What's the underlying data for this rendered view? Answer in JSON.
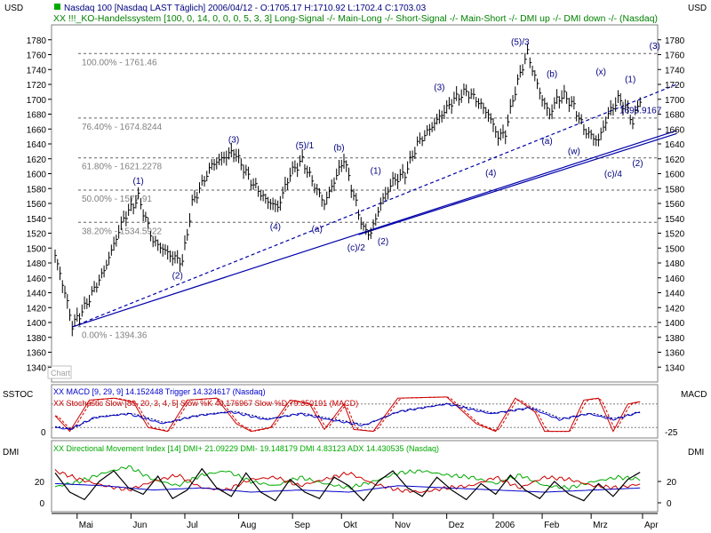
{
  "header": {
    "left_axis_label": "USD",
    "right_axis_label": "USD",
    "line1": "Nasdaq 100 [Nasdaq LAST Täglich] 2006/04/12 - O:1705.17 H:1710.92 L:1702.4 C:1703.03",
    "line2": "XX !!!_KO-Handelssystem [100, 0, 14, 0, 0, 0, 5, 3, 3] Long-Signal -/- Main-Long -/- Short-Signal -/- Main-Short -/- DMI up -/- DMI down -/- (Nasdaq)"
  },
  "colors": {
    "price": "#000000",
    "trendline": "#0000aa",
    "wave_label": "#000080",
    "fib_text": "#808080",
    "macd": "#0000cc",
    "stoch": "#cc0000",
    "dmi_plus": "#00aa00",
    "dmi_minus": "#cc0000",
    "dmi": "#000000",
    "adx": "#0000cc",
    "header_title": "#000080",
    "header_system": "#008000"
  },
  "chart_data": [
    {
      "type": "line",
      "name": "price",
      "ylim": [
        1320,
        1800
      ],
      "y_ticks": [
        1340,
        1360,
        1380,
        1400,
        1420,
        1440,
        1460,
        1480,
        1500,
        1520,
        1540,
        1560,
        1580,
        1600,
        1620,
        1640,
        1660,
        1680,
        1700,
        1720,
        1740,
        1760,
        1780
      ],
      "months": [
        "Mai",
        "Jun",
        "Jul",
        "Aug",
        "Sep",
        "Okt",
        "Nov",
        "Dez",
        "2006",
        "Feb",
        "Mrz",
        "Apr"
      ],
      "month_index": [
        9,
        31,
        53,
        75,
        97,
        117,
        138,
        160,
        179,
        199,
        219,
        240
      ],
      "n_bars": 244,
      "anchors": [
        [
          0,
          1490
        ],
        [
          4,
          1440
        ],
        [
          7,
          1396
        ],
        [
          12,
          1420
        ],
        [
          20,
          1470
        ],
        [
          28,
          1540
        ],
        [
          34,
          1568
        ],
        [
          40,
          1510
        ],
        [
          48,
          1488
        ],
        [
          52,
          1482
        ],
        [
          56,
          1560
        ],
        [
          64,
          1612
        ],
        [
          73,
          1630
        ],
        [
          80,
          1590
        ],
        [
          86,
          1565
        ],
        [
          91,
          1555
        ],
        [
          96,
          1600
        ],
        [
          101,
          1618
        ],
        [
          105,
          1590
        ],
        [
          110,
          1560
        ],
        [
          114,
          1590
        ],
        [
          118,
          1620
        ],
        [
          122,
          1570
        ],
        [
          126,
          1525
        ],
        [
          129,
          1520
        ],
        [
          133,
          1560
        ],
        [
          138,
          1590
        ],
        [
          143,
          1600
        ],
        [
          148,
          1640
        ],
        [
          153,
          1660
        ],
        [
          158,
          1680
        ],
        [
          163,
          1700
        ],
        [
          168,
          1710
        ],
        [
          172,
          1700
        ],
        [
          177,
          1680
        ],
        [
          181,
          1650
        ],
        [
          184,
          1655
        ],
        [
          187,
          1700
        ],
        [
          191,
          1745
        ],
        [
          193,
          1762
        ],
        [
          196,
          1730
        ],
        [
          199,
          1700
        ],
        [
          202,
          1680
        ],
        [
          205,
          1700
        ],
        [
          208,
          1705
        ],
        [
          212,
          1690
        ],
        [
          216,
          1660
        ],
        [
          220,
          1648
        ],
        [
          222,
          1645
        ],
        [
          226,
          1680
        ],
        [
          230,
          1700
        ],
        [
          233,
          1690
        ],
        [
          236,
          1670
        ],
        [
          239,
          1700
        ],
        [
          242,
          1720
        ],
        [
          244,
          1745
        ],
        [
          246,
          1752
        ],
        [
          249,
          1720
        ],
        [
          252,
          1703
        ]
      ],
      "fib_levels": [
        {
          "value": 1761.46,
          "label": "100.00% - 1761.46"
        },
        {
          "value": 1674.8244,
          "label": "76.40% - 1674.8244"
        },
        {
          "value": 1621.2278,
          "label": "61.80% - 1621.2278"
        },
        {
          "value": 1577.91,
          "label": "50.00% - 1577.91"
        },
        {
          "value": 1534.5922,
          "label": "38.20% - 1534.5922"
        },
        {
          "value": 1394.36,
          "label": "0.00% - 1394.36"
        }
      ],
      "trendlines": [
        {
          "from": [
            7,
            1394
          ],
          "to": [
            254,
            1658
          ],
          "dash": false
        },
        {
          "from": [
            124,
            1518
          ],
          "to": [
            254,
            1654
          ],
          "dash": false
        },
        {
          "from": [
            7,
            1394
          ],
          "to": [
            254,
            1720
          ],
          "dash": true
        }
      ],
      "wave_labels": [
        {
          "text": "(1)",
          "i": 34,
          "v": 1586
        },
        {
          "text": "(2)",
          "i": 50,
          "v": 1459
        },
        {
          "text": "(3)",
          "i": 73,
          "v": 1642
        },
        {
          "text": "(4)",
          "i": 90,
          "v": 1525
        },
        {
          "text": "(5)/1",
          "i": 102,
          "v": 1634
        },
        {
          "text": "(a)",
          "i": 107,
          "v": 1522
        },
        {
          "text": "(b)",
          "i": 116,
          "v": 1631
        },
        {
          "text": "(c)/2",
          "i": 123,
          "v": 1497
        },
        {
          "text": "(1)",
          "i": 131,
          "v": 1600
        },
        {
          "text": "(2)",
          "i": 134,
          "v": 1505
        },
        {
          "text": "(3)",
          "i": 157,
          "v": 1712
        },
        {
          "text": "(4)",
          "i": 178,
          "v": 1597
        },
        {
          "text": "(5)/3",
          "i": 190,
          "v": 1773
        },
        {
          "text": "(a)",
          "i": 201,
          "v": 1640
        },
        {
          "text": "(b)",
          "i": 203,
          "v": 1730
        },
        {
          "text": "(w)",
          "i": 212,
          "v": 1626
        },
        {
          "text": "(x)",
          "i": 223,
          "v": 1733
        },
        {
          "text": "(c)/4",
          "i": 228,
          "v": 1596
        },
        {
          "text": "(1)",
          "i": 235,
          "v": 1723
        },
        {
          "text": "(2)",
          "i": 238,
          "v": 1610
        },
        {
          "text": "(3)",
          "i": 245,
          "v": 1768
        }
      ],
      "last_value_label": "1695.9167",
      "watermark": "Chart"
    },
    {
      "type": "line",
      "name": "sstoc_macd",
      "left_label": "SSTOC",
      "right_label": "MACD",
      "legend_macd": "XX MACD [9, 29, 9] 14.152448 Trigger 14.324617 (Nasdaq)",
      "legend_stoch": "XX Stochastic Slow [80, 20, 3, 4, 5] Slow %K 40.176967 Slow %D 79.350191 (MACD)",
      "left_ticks": [
        0
      ],
      "right_ticks": [
        -25
      ],
      "stoch_anchors": [
        [
          0,
          50
        ],
        [
          6,
          10
        ],
        [
          14,
          90
        ],
        [
          24,
          95
        ],
        [
          32,
          85
        ],
        [
          38,
          20
        ],
        [
          46,
          10
        ],
        [
          54,
          90
        ],
        [
          66,
          95
        ],
        [
          74,
          30
        ],
        [
          80,
          10
        ],
        [
          88,
          20
        ],
        [
          96,
          90
        ],
        [
          104,
          80
        ],
        [
          110,
          15
        ],
        [
          118,
          80
        ],
        [
          122,
          15
        ],
        [
          130,
          10
        ],
        [
          140,
          95
        ],
        [
          160,
          98
        ],
        [
          172,
          30
        ],
        [
          180,
          10
        ],
        [
          188,
          95
        ],
        [
          196,
          60
        ],
        [
          200,
          10
        ],
        [
          210,
          10
        ],
        [
          216,
          90
        ],
        [
          222,
          95
        ],
        [
          228,
          10
        ],
        [
          234,
          80
        ],
        [
          242,
          90
        ],
        [
          250,
          40
        ]
      ],
      "macd_anchors": [
        [
          0,
          20
        ],
        [
          6,
          15
        ],
        [
          16,
          45
        ],
        [
          30,
          55
        ],
        [
          44,
          30
        ],
        [
          58,
          50
        ],
        [
          72,
          60
        ],
        [
          86,
          40
        ],
        [
          100,
          55
        ],
        [
          112,
          40
        ],
        [
          126,
          25
        ],
        [
          140,
          60
        ],
        [
          160,
          80
        ],
        [
          178,
          55
        ],
        [
          194,
          70
        ],
        [
          206,
          40
        ],
        [
          218,
          55
        ],
        [
          228,
          40
        ],
        [
          242,
          65
        ],
        [
          252,
          50
        ]
      ]
    },
    {
      "type": "line",
      "name": "dmi",
      "left_label": "DMI",
      "right_label": "DMI",
      "legend": "XX Directional Movement Index [14] DMI+ 21.09229 DMI- 19.148179 DMI 4.83123 ADX 14.430535 (Nasdaq)",
      "ylim": [
        -5,
        45
      ],
      "left_ticks": [
        0,
        20
      ],
      "right_ticks": [
        0,
        20
      ],
      "dmi_plus_anchors": [
        [
          0,
          15
        ],
        [
          10,
          20
        ],
        [
          20,
          28
        ],
        [
          30,
          34
        ],
        [
          40,
          22
        ],
        [
          50,
          16
        ],
        [
          60,
          26
        ],
        [
          70,
          30
        ],
        [
          80,
          20
        ],
        [
          90,
          16
        ],
        [
          100,
          24
        ],
        [
          110,
          18
        ],
        [
          120,
          14
        ],
        [
          130,
          20
        ],
        [
          140,
          28
        ],
        [
          150,
          30
        ],
        [
          160,
          26
        ],
        [
          170,
          24
        ],
        [
          180,
          18
        ],
        [
          190,
          26
        ],
        [
          200,
          16
        ],
        [
          210,
          14
        ],
        [
          220,
          20
        ],
        [
          230,
          24
        ],
        [
          240,
          22
        ],
        [
          252,
          21
        ]
      ],
      "dmi_minus_anchors": [
        [
          0,
          30
        ],
        [
          10,
          22
        ],
        [
          20,
          16
        ],
        [
          30,
          12
        ],
        [
          40,
          20
        ],
        [
          50,
          26
        ],
        [
          60,
          14
        ],
        [
          70,
          12
        ],
        [
          80,
          22
        ],
        [
          90,
          24
        ],
        [
          100,
          16
        ],
        [
          110,
          22
        ],
        [
          120,
          28
        ],
        [
          130,
          18
        ],
        [
          140,
          12
        ],
        [
          150,
          10
        ],
        [
          160,
          14
        ],
        [
          170,
          16
        ],
        [
          180,
          24
        ],
        [
          190,
          14
        ],
        [
          200,
          24
        ],
        [
          210,
          22
        ],
        [
          220,
          16
        ],
        [
          230,
          14
        ],
        [
          240,
          18
        ],
        [
          252,
          19
        ]
      ],
      "dmi_anchors": [
        [
          0,
          28
        ],
        [
          6,
          10
        ],
        [
          12,
          3
        ],
        [
          18,
          20
        ],
        [
          24,
          30
        ],
        [
          30,
          14
        ],
        [
          36,
          8
        ],
        [
          42,
          25
        ],
        [
          48,
          4
        ],
        [
          54,
          12
        ],
        [
          60,
          32
        ],
        [
          66,
          14
        ],
        [
          72,
          6
        ],
        [
          78,
          28
        ],
        [
          84,
          10
        ],
        [
          90,
          2
        ],
        [
          96,
          22
        ],
        [
          102,
          10
        ],
        [
          108,
          4
        ],
        [
          114,
          24
        ],
        [
          120,
          16
        ],
        [
          126,
          2
        ],
        [
          132,
          20
        ],
        [
          138,
          30
        ],
        [
          144,
          14
        ],
        [
          150,
          6
        ],
        [
          156,
          24
        ],
        [
          162,
          12
        ],
        [
          168,
          3
        ],
        [
          174,
          18
        ],
        [
          180,
          8
        ],
        [
          186,
          26
        ],
        [
          192,
          12
        ],
        [
          198,
          4
        ],
        [
          204,
          20
        ],
        [
          210,
          8
        ],
        [
          216,
          2
        ],
        [
          222,
          18
        ],
        [
          228,
          6
        ],
        [
          234,
          22
        ],
        [
          240,
          30
        ],
        [
          246,
          10
        ],
        [
          252,
          5
        ]
      ],
      "adx_anchors": [
        [
          0,
          18
        ],
        [
          20,
          16
        ],
        [
          40,
          12
        ],
        [
          60,
          14
        ],
        [
          80,
          10
        ],
        [
          100,
          12
        ],
        [
          120,
          10
        ],
        [
          140,
          16
        ],
        [
          160,
          14
        ],
        [
          180,
          12
        ],
        [
          200,
          10
        ],
        [
          220,
          12
        ],
        [
          240,
          14
        ],
        [
          252,
          14
        ]
      ]
    }
  ]
}
